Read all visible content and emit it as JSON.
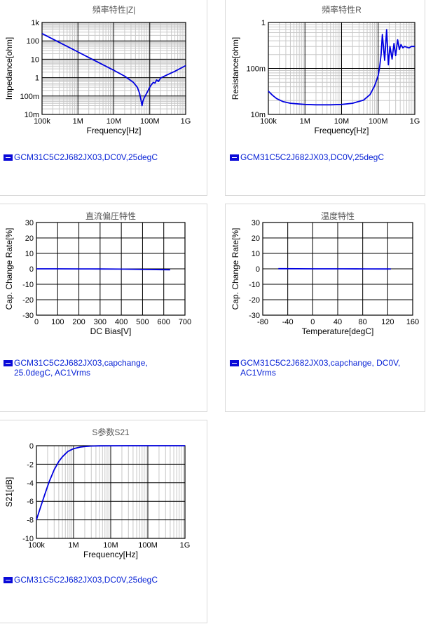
{
  "colors": {
    "series": "#0000e0",
    "legend_text": "#0a24d6"
  },
  "panels": [
    {
      "id": "p1",
      "title": "頻率特性|Z|",
      "legend": "GCM31C5C2J682JX03,DC0V,25degC",
      "chart_data": {
        "type": "line",
        "x_scale": "log",
        "y_scale": "log",
        "xlim": [
          100000,
          1000000000
        ],
        "ylim": [
          0.01,
          1000
        ],
        "xlabel": "Frequency[Hz]",
        "ylabel": "Impedance[ohm]",
        "x_ticks": [
          {
            "v": 100000,
            "label": "100k"
          },
          {
            "v": 1000000,
            "label": "1M"
          },
          {
            "v": 10000000,
            "label": "10M"
          },
          {
            "v": 100000000,
            "label": "100M"
          },
          {
            "v": 1000000000,
            "label": "1G"
          }
        ],
        "y_ticks": [
          {
            "v": 1000,
            "label": "1k"
          },
          {
            "v": 100,
            "label": "100"
          },
          {
            "v": 10,
            "label": "10"
          },
          {
            "v": 1,
            "label": "1"
          },
          {
            "v": 0.1,
            "label": "100m"
          },
          {
            "v": 0.01,
            "label": "10m"
          }
        ],
        "grid": true,
        "series": [
          {
            "x": [
              100000,
              200000,
              500000,
              1000000,
              2000000,
              5000000,
              10000000,
              20000000,
              35000000,
              45000000,
              52000000,
              57000000,
              61000000,
              64000000,
              70000000,
              85000000,
              100000000,
              110000000,
              125000000,
              140000000,
              155000000,
              175000000,
              200000000,
              300000000,
              500000000,
              1000000000
            ],
            "y": [
              250,
              125,
              50,
              25,
              12.5,
              5,
              2.5,
              1.2,
              0.55,
              0.3,
              0.14,
              0.06,
              0.03,
              0.05,
              0.08,
              0.16,
              0.3,
              0.4,
              0.55,
              0.5,
              0.75,
              0.62,
              0.95,
              1.4,
              2.2,
              4.5
            ]
          }
        ]
      }
    },
    {
      "id": "p2",
      "title": "頻率特性R",
      "legend": "GCM31C5C2J682JX03,DC0V,25degC",
      "chart_data": {
        "type": "line",
        "x_scale": "log",
        "y_scale": "log",
        "xlim": [
          100000,
          1000000000
        ],
        "ylim": [
          0.01,
          1
        ],
        "xlabel": "Frequency[Hz]",
        "ylabel": "Resistance[ohm]",
        "x_ticks": [
          {
            "v": 100000,
            "label": "100k"
          },
          {
            "v": 1000000,
            "label": "1M"
          },
          {
            "v": 10000000,
            "label": "10M"
          },
          {
            "v": 100000000,
            "label": "100M"
          },
          {
            "v": 1000000000,
            "label": "1G"
          }
        ],
        "y_ticks": [
          {
            "v": 1,
            "label": "1"
          },
          {
            "v": 0.1,
            "label": "100m"
          },
          {
            "v": 0.01,
            "label": "10m"
          }
        ],
        "grid": true,
        "series": [
          {
            "x": [
              100000,
              130000,
              170000,
              250000,
              400000,
              700000,
              1000000,
              2000000,
              5000000,
              10000000,
              20000000,
              40000000,
              60000000,
              80000000,
              100000000,
              110000000,
              120000000,
              130000000,
              150000000,
              170000000,
              190000000,
              210000000,
              240000000,
              270000000,
              300000000,
              340000000,
              380000000,
              420000000,
              470000000,
              530000000,
              600000000,
              700000000,
              800000000,
              1000000000
            ],
            "y": [
              0.032,
              0.026,
              0.022,
              0.019,
              0.0175,
              0.0168,
              0.0165,
              0.0162,
              0.0162,
              0.0165,
              0.0175,
              0.0205,
              0.027,
              0.042,
              0.07,
              0.11,
              0.2,
              0.55,
              0.15,
              0.7,
              0.12,
              0.3,
              0.16,
              0.35,
              0.19,
              0.42,
              0.26,
              0.33,
              0.28,
              0.3,
              0.29,
              0.28,
              0.3,
              0.3
            ]
          }
        ]
      }
    },
    {
      "id": "p3",
      "title": "直流偏圧特性",
      "legend": "GCM31C5C2J682JX03,capchange, 25.0degC, AC1Vrms",
      "chart_data": {
        "type": "line",
        "x_scale": "linear",
        "y_scale": "linear",
        "xlim": [
          0,
          700
        ],
        "ylim": [
          -30,
          30
        ],
        "xlabel": "DC Bias[V]",
        "ylabel": "Cap. Change Rate[%]",
        "x_ticks": [
          {
            "v": 0,
            "label": "0"
          },
          {
            "v": 100,
            "label": "100"
          },
          {
            "v": 200,
            "label": "200"
          },
          {
            "v": 300,
            "label": "300"
          },
          {
            "v": 400,
            "label": "400"
          },
          {
            "v": 500,
            "label": "500"
          },
          {
            "v": 600,
            "label": "600"
          },
          {
            "v": 700,
            "label": "700"
          }
        ],
        "y_ticks": [
          {
            "v": 30,
            "label": "30"
          },
          {
            "v": 20,
            "label": "20"
          },
          {
            "v": 10,
            "label": "10"
          },
          {
            "v": 0,
            "label": "0"
          },
          {
            "v": -10,
            "label": "-10"
          },
          {
            "v": -20,
            "label": "-20"
          },
          {
            "v": -30,
            "label": "-30"
          }
        ],
        "grid": true,
        "series": [
          {
            "x": [
              0,
              100,
              200,
              300,
              400,
              500,
              630
            ],
            "y": [
              0,
              0,
              -0.05,
              -0.1,
              -0.2,
              -0.35,
              -0.6
            ]
          }
        ]
      }
    },
    {
      "id": "p4",
      "title": "温度特性",
      "legend": "GCM31C5C2J682JX03,capchange, DC0V, AC1Vrms",
      "chart_data": {
        "type": "line",
        "x_scale": "linear",
        "y_scale": "linear",
        "xlim": [
          -80,
          160
        ],
        "ylim": [
          -30,
          30
        ],
        "xlabel": "Temperature[degC]",
        "ylabel": "Cap. Change Rate[%]",
        "x_ticks": [
          {
            "v": -80,
            "label": "-80"
          },
          {
            "v": -40,
            "label": "-40"
          },
          {
            "v": 0,
            "label": "0"
          },
          {
            "v": 40,
            "label": "40"
          },
          {
            "v": 80,
            "label": "80"
          },
          {
            "v": 120,
            "label": "120"
          },
          {
            "v": 160,
            "label": "160"
          }
        ],
        "y_ticks": [
          {
            "v": 30,
            "label": "30"
          },
          {
            "v": 20,
            "label": "20"
          },
          {
            "v": 10,
            "label": "10"
          },
          {
            "v": 0,
            "label": "0"
          },
          {
            "v": -10,
            "label": "-10"
          },
          {
            "v": -20,
            "label": "-20"
          },
          {
            "v": -30,
            "label": "-30"
          }
        ],
        "grid": true,
        "series": [
          {
            "x": [
              -55,
              -25,
              0,
              25,
              50,
              85,
              125
            ],
            "y": [
              0.1,
              0.05,
              0.02,
              0,
              -0.02,
              -0.05,
              -0.1
            ]
          }
        ]
      }
    },
    {
      "id": "p5",
      "title": "S参数S21",
      "legend": "GCM31C5C2J682JX03,DC0V,25degC",
      "chart_data": {
        "type": "line",
        "x_scale": "log",
        "y_scale": "linear",
        "xlim": [
          100000,
          1000000000
        ],
        "ylim": [
          -10,
          0
        ],
        "xlabel": "Frequency[Hz]",
        "ylabel": "S21[dB]",
        "x_ticks": [
          {
            "v": 100000,
            "label": "100k"
          },
          {
            "v": 1000000,
            "label": "1M"
          },
          {
            "v": 10000000,
            "label": "10M"
          },
          {
            "v": 100000000,
            "label": "100M"
          },
          {
            "v": 1000000000,
            "label": "1G"
          }
        ],
        "y_ticks": [
          {
            "v": 0,
            "label": "0"
          },
          {
            "v": -2,
            "label": "-2"
          },
          {
            "v": -4,
            "label": "-4"
          },
          {
            "v": -6,
            "label": "-6"
          },
          {
            "v": -8,
            "label": "-8"
          },
          {
            "v": -10,
            "label": "-10"
          }
        ],
        "grid": true,
        "series": [
          {
            "x": [
              100000,
              130000,
              170000,
              220000,
              300000,
              400000,
              500000,
              700000,
              1000000,
              1500000,
              2000000,
              3000000,
              5000000,
              10000000,
              30000000,
              100000000,
              300000000,
              1000000000
            ],
            "y": [
              -8,
              -6.6,
              -5.2,
              -3.9,
              -2.6,
              -1.7,
              -1.2,
              -0.62,
              -0.32,
              -0.15,
              -0.09,
              -0.04,
              -0.015,
              -0.005,
              0,
              0,
              0,
              0
            ]
          }
        ]
      }
    }
  ]
}
